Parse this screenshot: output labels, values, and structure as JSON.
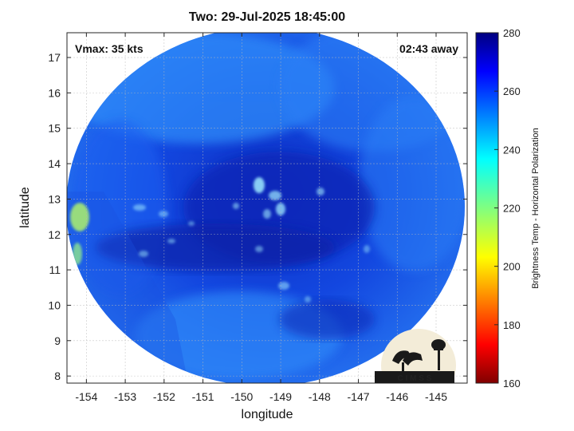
{
  "title": "Two: 29-Jul-2025 18:45:00",
  "vmax_label": "Vmax: 35 kts",
  "time_away_label": "02:43 away",
  "map": {
    "xlabel": "longitude",
    "ylabel": "latitude",
    "x_ticks": [
      "-154",
      "-153",
      "-152",
      "-151",
      "-150",
      "-149",
      "-148",
      "-147",
      "-146",
      "-145"
    ],
    "y_ticks": [
      "8",
      "9",
      "10",
      "11",
      "12",
      "13",
      "14",
      "15",
      "16",
      "17"
    ],
    "x_range": [
      -154.5,
      -144.2
    ],
    "y_range": [
      7.8,
      17.7
    ],
    "grid": true
  },
  "colorbar": {
    "label": "Brightness Temp - Horizontal Polarization",
    "ticks": [
      "160",
      "180",
      "200",
      "220",
      "240",
      "260",
      "280"
    ],
    "range": [
      160,
      280
    ],
    "colormap": "jet"
  },
  "logo": {
    "text": "C I M S S"
  },
  "colors": {
    "disk_dark": "#0a2fc8",
    "disk_mid": "#1656ee",
    "disk_light": "#2e86f8",
    "highlight": "#8ee8ff",
    "warm_edge": "#b8f25a",
    "logo_bg": "#f3ecd8"
  }
}
